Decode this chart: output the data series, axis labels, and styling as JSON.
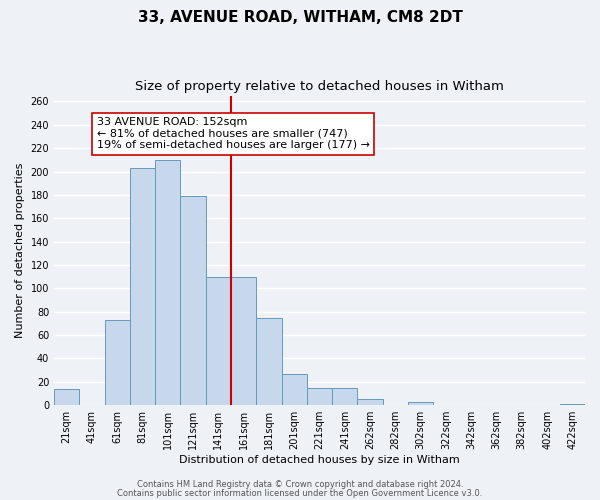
{
  "title": "33, AVENUE ROAD, WITHAM, CM8 2DT",
  "subtitle": "Size of property relative to detached houses in Witham",
  "xlabel": "Distribution of detached houses by size in Witham",
  "ylabel": "Number of detached properties",
  "bar_labels": [
    "21sqm",
    "41sqm",
    "61sqm",
    "81sqm",
    "101sqm",
    "121sqm",
    "141sqm",
    "161sqm",
    "181sqm",
    "201sqm",
    "221sqm",
    "241sqm",
    "262sqm",
    "282sqm",
    "302sqm",
    "322sqm",
    "342sqm",
    "362sqm",
    "382sqm",
    "402sqm",
    "422sqm"
  ],
  "bar_values": [
    14,
    0,
    73,
    203,
    210,
    179,
    110,
    110,
    75,
    27,
    15,
    15,
    5,
    0,
    3,
    0,
    0,
    0,
    0,
    0,
    1
  ],
  "bar_color": "#c8d8ec",
  "bar_edge_color": "#6699bb",
  "reference_line_color": "#cc0000",
  "annotation_box_text": "33 AVENUE ROAD: 152sqm\n← 81% of detached houses are smaller (747)\n19% of semi-detached houses are larger (177) →",
  "annotation_box_facecolor": "white",
  "annotation_box_edgecolor": "#cc0000",
  "ylim": [
    0,
    265
  ],
  "yticks": [
    0,
    20,
    40,
    60,
    80,
    100,
    120,
    140,
    160,
    180,
    200,
    220,
    240,
    260
  ],
  "footer_line1": "Contains HM Land Registry data © Crown copyright and database right 2024.",
  "footer_line2": "Contains public sector information licensed under the Open Government Licence v3.0.",
  "background_color": "#eef2f7",
  "grid_color": "#ffffff",
  "title_fontsize": 11,
  "subtitle_fontsize": 9.5,
  "label_fontsize": 8,
  "tick_fontsize": 7,
  "annotation_fontsize": 8,
  "footer_fontsize": 6
}
